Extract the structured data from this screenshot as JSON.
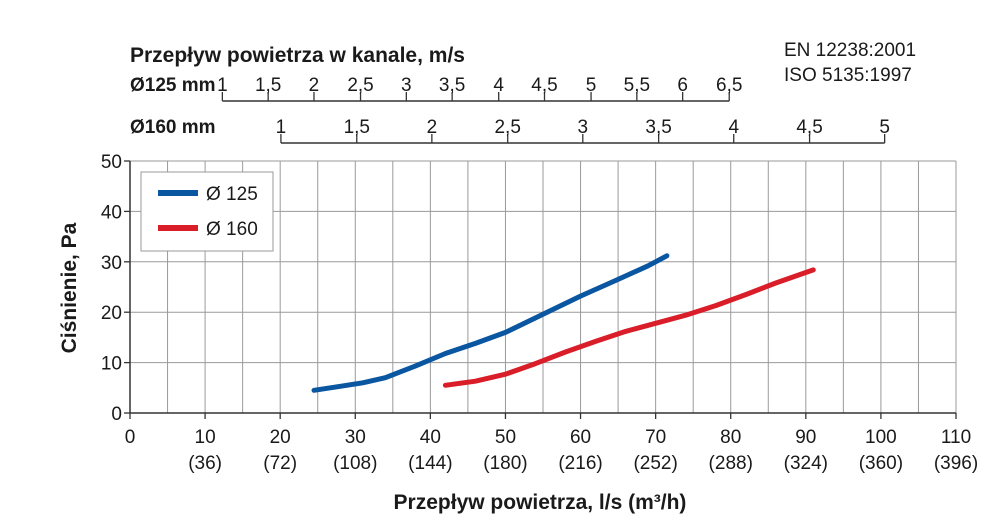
{
  "standards": [
    "EN 12238:2001",
    "ISO 5135:1997"
  ],
  "chart_data": {
    "type": "line",
    "ylabel": "Ciśnienie, Pa",
    "xlabel": "Przepływ powietrza, l/s (m³/h)",
    "top_title": "Przepływ powietrza w kanale, m/s",
    "xlim": [
      0,
      110
    ],
    "ylim": [
      0,
      50
    ],
    "grid": true,
    "legend_position": "top-left",
    "x_ticks": [
      {
        "v": 0,
        "label": "0",
        "sub": ""
      },
      {
        "v": 10,
        "label": "10",
        "sub": "(36)"
      },
      {
        "v": 20,
        "label": "20",
        "sub": "(72)"
      },
      {
        "v": 30,
        "label": "30",
        "sub": "(108)"
      },
      {
        "v": 40,
        "label": "40",
        "sub": "(144)"
      },
      {
        "v": 50,
        "label": "50",
        "sub": "(180)"
      },
      {
        "v": 60,
        "label": "60",
        "sub": "(216)"
      },
      {
        "v": 70,
        "label": "70",
        "sub": "(252)"
      },
      {
        "v": 80,
        "label": "80",
        "sub": "(288)"
      },
      {
        "v": 90,
        "label": "90",
        "sub": "(324)"
      },
      {
        "v": 100,
        "label": "100",
        "sub": "(360)"
      },
      {
        "v": 110,
        "label": "110",
        "sub": "(396)"
      }
    ],
    "y_ticks": [
      0,
      10,
      20,
      30,
      40,
      50
    ],
    "velocity_axes": [
      {
        "label": "Ø125 mm",
        "ticks": [
          {
            "label": "1",
            "x": 12.3
          },
          {
            "label": "1,5",
            "x": 18.4
          },
          {
            "label": "2",
            "x": 24.5
          },
          {
            "label": "2,5",
            "x": 30.7
          },
          {
            "label": "3",
            "x": 36.8
          },
          {
            "label": "3,5",
            "x": 42.9
          },
          {
            "label": "4",
            "x": 49.1
          },
          {
            "label": "4,5",
            "x": 55.2
          },
          {
            "label": "5",
            "x": 61.4
          },
          {
            "label": "5,5",
            "x": 67.5
          },
          {
            "label": "6",
            "x": 73.6
          },
          {
            "label": "6,5",
            "x": 79.8
          }
        ]
      },
      {
        "label": "Ø160 mm",
        "ticks": [
          {
            "label": "1",
            "x": 20.1
          },
          {
            "label": "1,5",
            "x": 30.2
          },
          {
            "label": "2",
            "x": 40.2
          },
          {
            "label": "2,5",
            "x": 50.3
          },
          {
            "label": "3",
            "x": 60.3
          },
          {
            "label": "3,5",
            "x": 70.4
          },
          {
            "label": "4",
            "x": 80.4
          },
          {
            "label": "4,5",
            "x": 90.5
          },
          {
            "label": "5",
            "x": 100.5
          }
        ]
      }
    ],
    "series": [
      {
        "name": "Ø 125",
        "color": "#0a56a0",
        "points": [
          [
            24.5,
            4.5
          ],
          [
            28,
            5.3
          ],
          [
            31,
            6.0
          ],
          [
            34,
            7.0
          ],
          [
            38,
            9.3
          ],
          [
            42,
            11.8
          ],
          [
            46,
            13.8
          ],
          [
            50,
            16.0
          ],
          [
            55,
            19.6
          ],
          [
            60,
            23.2
          ],
          [
            65,
            26.5
          ],
          [
            69,
            29.2
          ],
          [
            71.5,
            31.2
          ]
        ]
      },
      {
        "name": "Ø 160",
        "color": "#d91e2a",
        "points": [
          [
            42,
            5.5
          ],
          [
            46,
            6.3
          ],
          [
            50,
            7.7
          ],
          [
            54,
            9.8
          ],
          [
            58,
            12.1
          ],
          [
            62,
            14.2
          ],
          [
            66,
            16.2
          ],
          [
            70,
            17.8
          ],
          [
            74,
            19.4
          ],
          [
            78,
            21.3
          ],
          [
            82,
            23.5
          ],
          [
            86,
            25.8
          ],
          [
            91,
            28.4
          ]
        ]
      }
    ]
  }
}
